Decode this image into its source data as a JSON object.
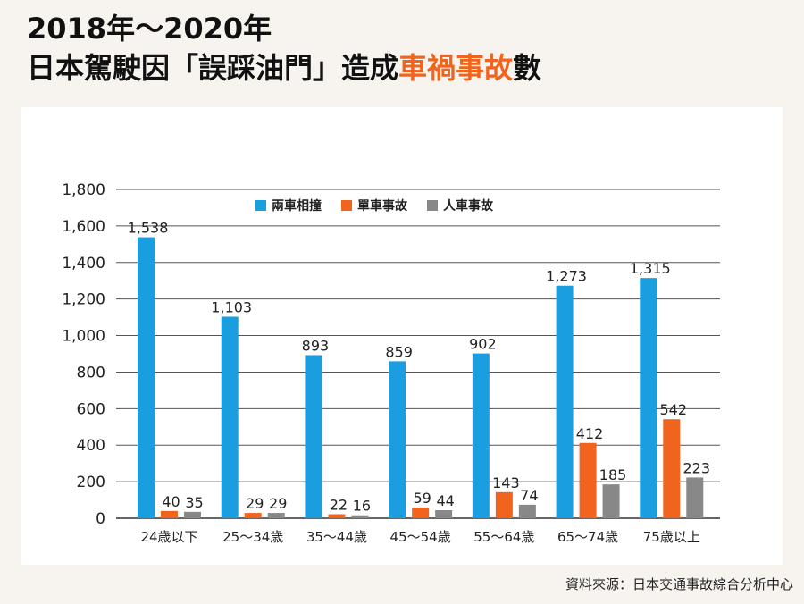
{
  "header": {
    "line1": "2018年～2020年",
    "line2_prefix": "日本駕駛因「誤踩油門」造成",
    "line2_highlight": "車禍事故",
    "line2_suffix": "數"
  },
  "source": "資料來源：日本交通事故綜合分析中心",
  "colors": {
    "highlight": "#f0641e",
    "card": "#ffffff",
    "background": "#f7f4ef"
  },
  "chart_data": {
    "type": "bar",
    "categories": [
      "24歳以下",
      "25～34歳",
      "35～44歳",
      "45～54歳",
      "55～64歳",
      "65～74歳",
      "75歳以上"
    ],
    "series": [
      {
        "name": "兩車相撞",
        "color": "#1a9ee0",
        "values": [
          1538,
          1103,
          893,
          859,
          902,
          1273,
          1315
        ],
        "labels": [
          "1,538",
          "1,103",
          "893",
          "859",
          "902",
          "1,273",
          "1,315"
        ]
      },
      {
        "name": "單車事故",
        "color": "#f0641e",
        "values": [
          40,
          29,
          22,
          59,
          143,
          412,
          542
        ],
        "labels": [
          "40",
          "29",
          "22",
          "59",
          "143",
          "412",
          "542"
        ]
      },
      {
        "name": "人車事故",
        "color": "#888888",
        "values": [
          35,
          29,
          16,
          44,
          74,
          185,
          223
        ],
        "labels": [
          "35",
          "29",
          "16",
          "44",
          "74",
          "185",
          "223"
        ]
      }
    ],
    "yticks": [
      0,
      200,
      400,
      600,
      800,
      1000,
      1200,
      1400,
      1600,
      1800
    ],
    "ytick_labels": [
      "0",
      "200",
      "400",
      "600",
      "800",
      "1,000",
      "1,200",
      "1,400",
      "1,600",
      "1,800"
    ],
    "ylim": [
      0,
      1800
    ],
    "grid": true,
    "legend_position": "top-left"
  }
}
